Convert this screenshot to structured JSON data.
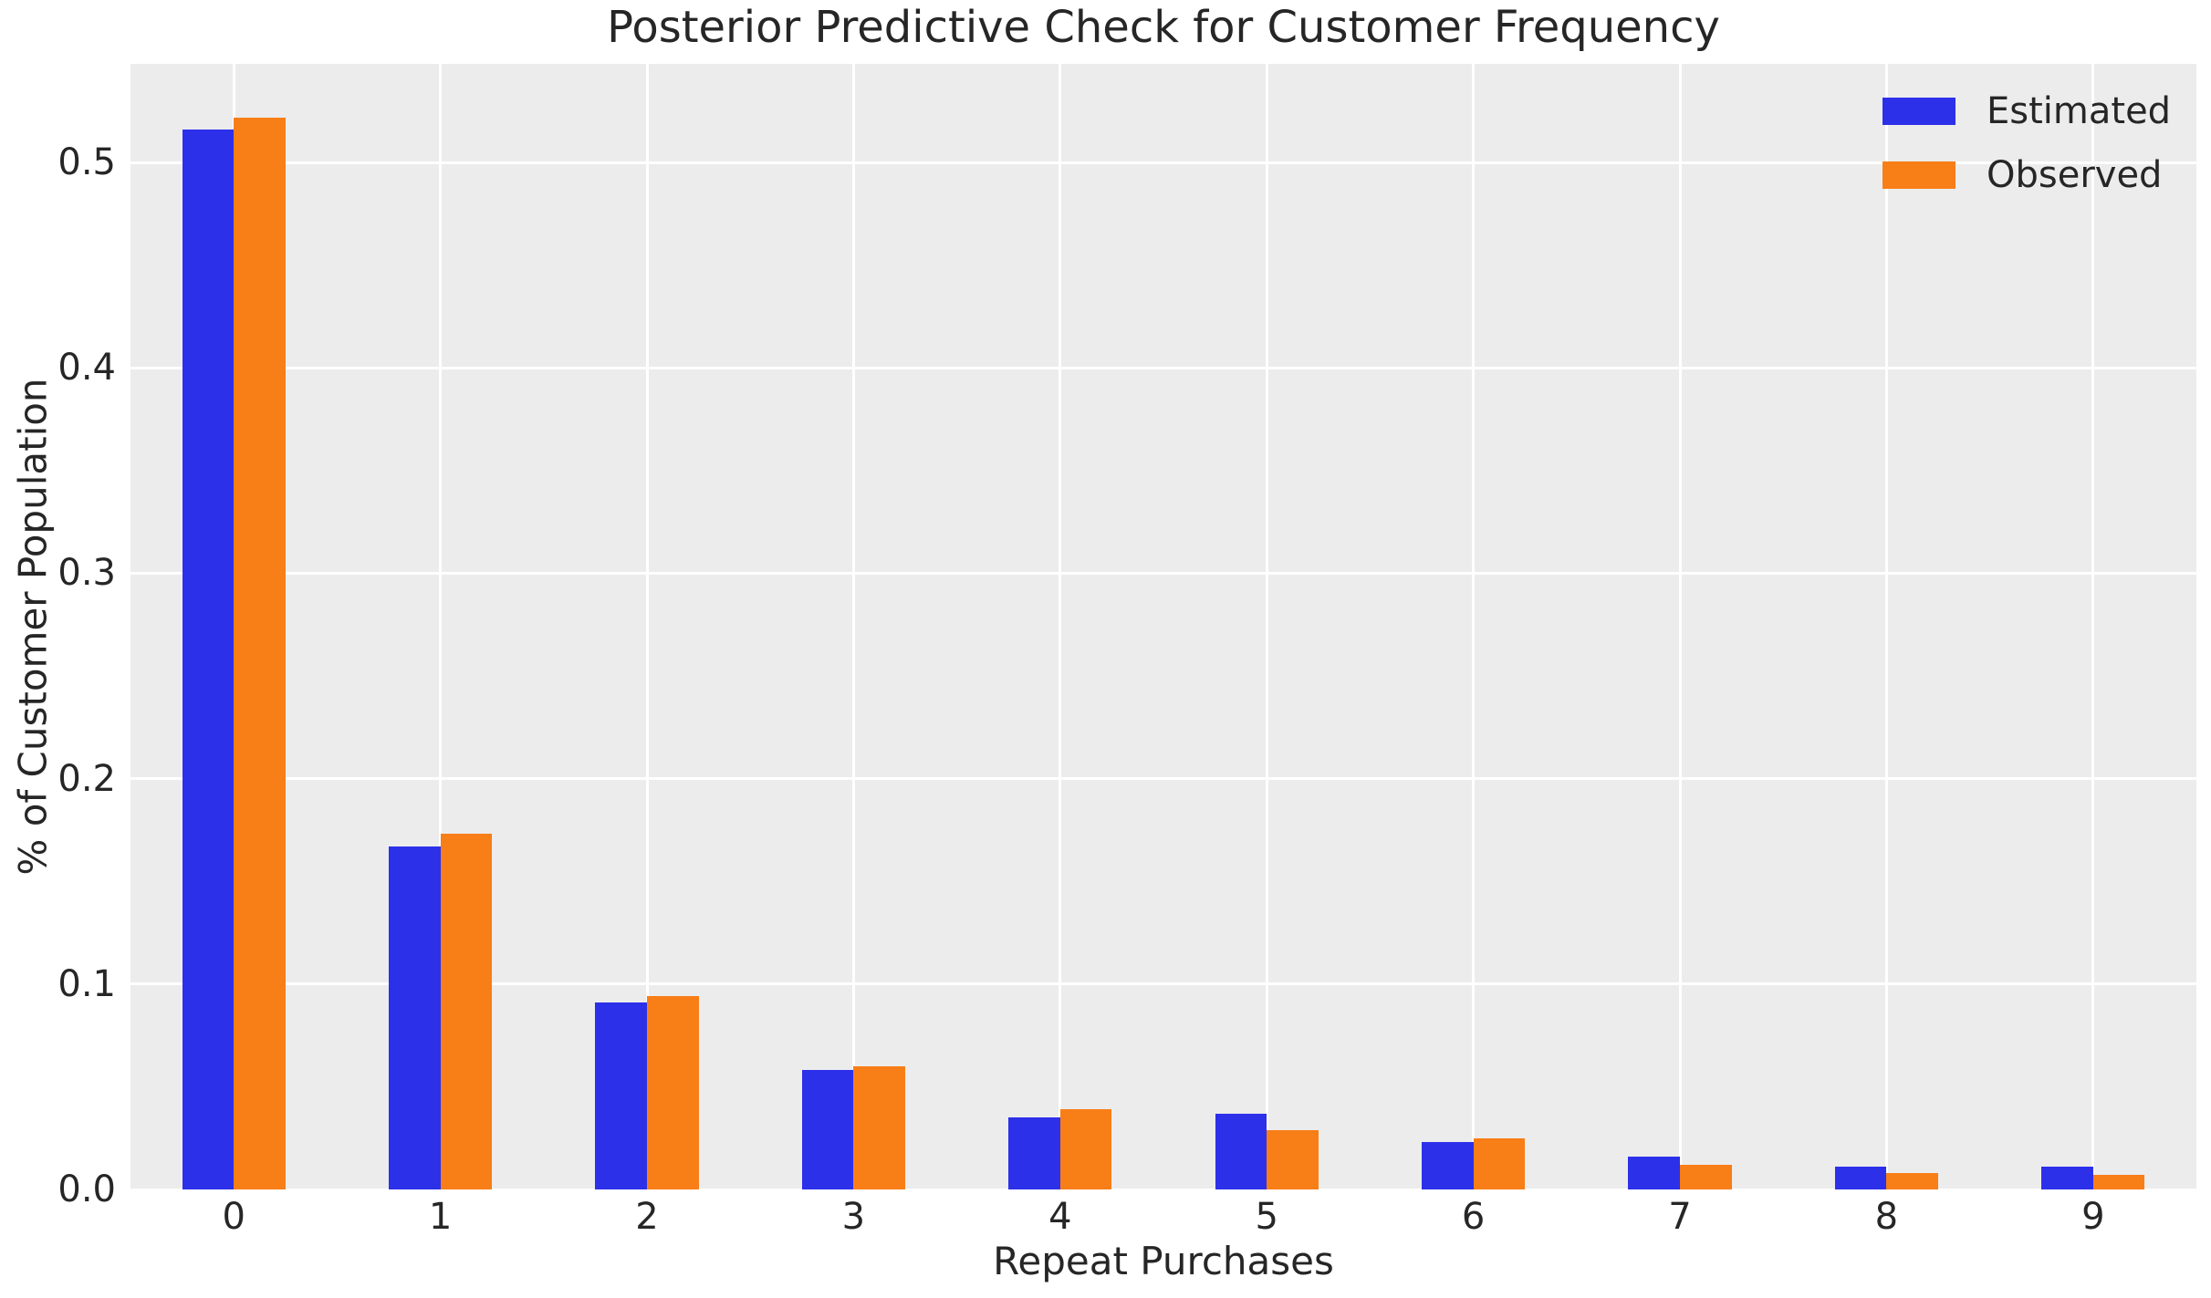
{
  "chart_data": {
    "type": "bar",
    "title": "Posterior Predictive Check for Customer Frequency",
    "xlabel": "Repeat Purchases",
    "ylabel": "% of Customer Population",
    "categories": [
      "0",
      "1",
      "2",
      "3",
      "4",
      "5",
      "6",
      "7",
      "8",
      "9"
    ],
    "series": [
      {
        "name": "Estimated",
        "color": "#2d30e9",
        "values": [
          0.516,
          0.167,
          0.091,
          0.058,
          0.035,
          0.037,
          0.023,
          0.016,
          0.011,
          0.011
        ]
      },
      {
        "name": "Observed",
        "color": "#f87e17",
        "values": [
          0.522,
          0.173,
          0.094,
          0.06,
          0.039,
          0.029,
          0.025,
          0.012,
          0.008,
          0.007
        ]
      }
    ],
    "ylim": [
      0,
      0.548
    ],
    "yticks": [
      0.0,
      0.1,
      0.2,
      0.3,
      0.4,
      0.5
    ],
    "ytick_labels": [
      "0.0",
      "0.1",
      "0.2",
      "0.3",
      "0.4",
      "0.5"
    ],
    "grid": true,
    "grid_axes": "both",
    "legend_position": "upper right",
    "legend_frame": false,
    "plot_bg_color": "#ececed",
    "grid_color": "#ffffff",
    "text_color": "#262626",
    "figure_bg_color": "#ffffff"
  }
}
